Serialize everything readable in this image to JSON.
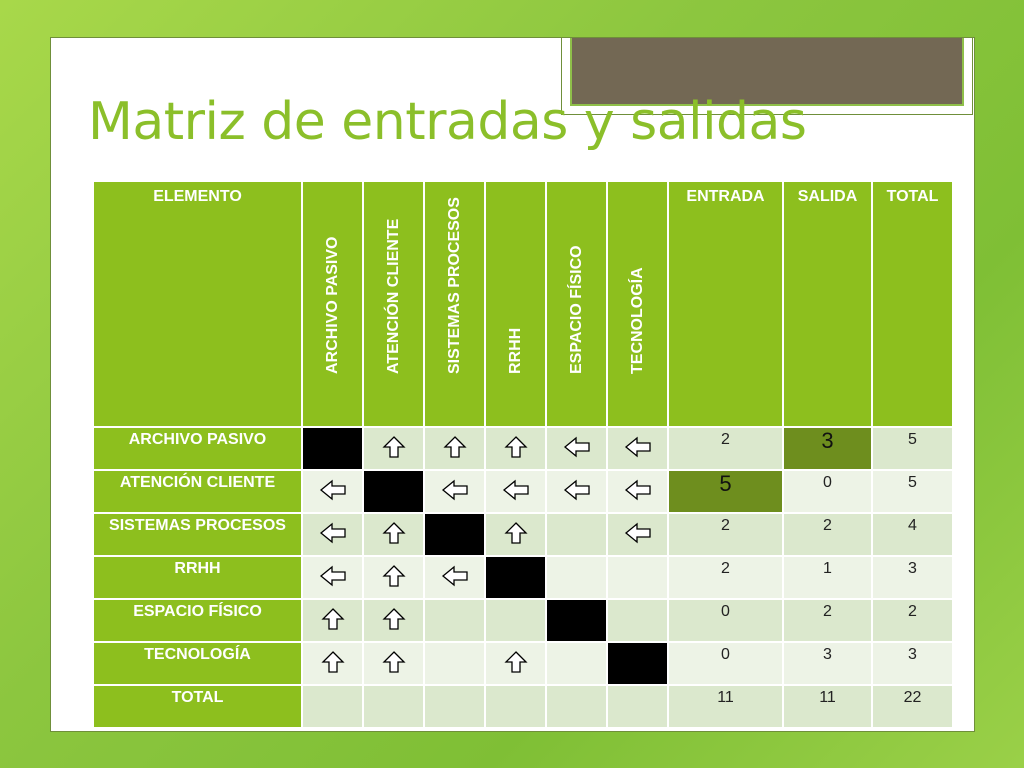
{
  "title": "Matriz de entradas y salidas",
  "colors": {
    "background": "#8cc63f",
    "title": "#8bbf2a",
    "header": "#8dbf1e",
    "cell_light": "#dbe8cd",
    "cell_alt": "#edf3e6",
    "highlight": "#6e8e1e",
    "diagonal": "#000000"
  },
  "table": {
    "corner_label": "ELEMENTO",
    "columns": [
      "ARCHIVO PASIVO",
      "ATENCIÓN CLIENTE",
      "SISTEMAS PROCESOS",
      "RRHH",
      "ESPACIO FÍSICO",
      "TECNOLOGÍA"
    ],
    "summary_columns": [
      "ENTRADA",
      "SALIDA",
      "TOTAL"
    ],
    "rows": [
      {
        "label": "ARCHIVO PASIVO",
        "cells": [
          "black",
          "up",
          "up",
          "up",
          "left",
          "left"
        ],
        "entrada": "2",
        "salida": "3",
        "total": "5"
      },
      {
        "label": "ATENCIÓN CLIENTE",
        "cells": [
          "left",
          "black",
          "left",
          "left",
          "left",
          "left"
        ],
        "entrada": "5",
        "salida": "0",
        "total": "5"
      },
      {
        "label": "SISTEMAS PROCESOS",
        "cells": [
          "left",
          "up",
          "black",
          "up",
          "",
          "left"
        ],
        "entrada": "2",
        "salida": "2",
        "total": "4"
      },
      {
        "label": "RRHH",
        "cells": [
          "left",
          "up",
          "left",
          "black",
          "",
          ""
        ],
        "entrada": "2",
        "salida": "1",
        "total": "3"
      },
      {
        "label": "ESPACIO FÍSICO",
        "cells": [
          "up",
          "up",
          "",
          "",
          "black",
          ""
        ],
        "entrada": "0",
        "salida": "2",
        "total": "2"
      },
      {
        "label": "TECNOLOGÍA",
        "cells": [
          "up",
          "up",
          "",
          "up",
          "",
          "black"
        ],
        "entrada": "0",
        "salida": "3",
        "total": "3"
      }
    ],
    "total_row": {
      "label": "TOTAL",
      "entrada": "11",
      "salida": "11",
      "total": "22"
    }
  }
}
